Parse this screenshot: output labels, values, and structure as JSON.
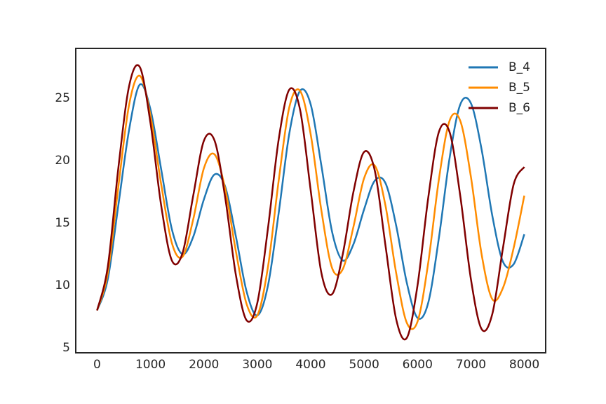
{
  "chart_data": {
    "type": "line",
    "x": [
      0,
      200,
      400,
      600,
      800,
      1000,
      1200,
      1400,
      1600,
      1800,
      2000,
      2200,
      2400,
      2600,
      2800,
      3000,
      3200,
      3400,
      3600,
      3800,
      4000,
      4200,
      4400,
      4600,
      4800,
      5000,
      5200,
      5400,
      5600,
      5800,
      6000,
      6200,
      6400,
      6600,
      6800,
      7000,
      7200,
      7400,
      7600,
      7800,
      8000
    ],
    "series": [
      {
        "name": "B_4",
        "color": "#1f77b4",
        "values": [
          8,
          10.5,
          16.5,
          22.5,
          26.1,
          24.1,
          19.3,
          14.5,
          12.5,
          13.9,
          16.9,
          18.9,
          17.9,
          13.9,
          9.5,
          7.6,
          10.0,
          15.8,
          22.2,
          25.6,
          24.5,
          19.6,
          14.3,
          12.0,
          13.3,
          16.1,
          18.4,
          18.2,
          14.8,
          10.2,
          7.4,
          8.6,
          13.8,
          20.2,
          24.5,
          24.6,
          20.9,
          15.6,
          11.9,
          11.7,
          14.1
        ]
      },
      {
        "name": "B_5",
        "color": "#ff8c00",
        "values": [
          8,
          11,
          18,
          24.5,
          26.8,
          23.6,
          18.1,
          13.4,
          12.3,
          15.3,
          19.4,
          20.5,
          17.7,
          12.7,
          8.5,
          7.6,
          11.5,
          18.4,
          24.3,
          25.6,
          22.1,
          16.0,
          11.4,
          11.3,
          14.7,
          18.6,
          19.6,
          16.4,
          11.0,
          7.0,
          7.1,
          11.8,
          18.5,
          23.2,
          23.2,
          18.7,
          12.5,
          8.9,
          9.8,
          13.0,
          17.2
        ]
      },
      {
        "name": "B_6",
        "color": "#800000",
        "values": [
          8,
          11.5,
          19.5,
          26,
          27.5,
          23.0,
          16.4,
          12.0,
          12.6,
          17.2,
          21.6,
          21.6,
          17.0,
          10.8,
          7.2,
          8.6,
          14.6,
          21.7,
          25.7,
          24.1,
          17.6,
          11.0,
          9.3,
          12.5,
          17.5,
          20.7,
          19.2,
          13.2,
          7.3,
          5.8,
          10.0,
          17.0,
          22.3,
          22.3,
          17.2,
          10.5,
          6.5,
          7.7,
          13.0,
          18.1,
          19.5
        ]
      }
    ],
    "xlim": [
      -400,
      8400
    ],
    "ylim": [
      4.6,
      29.0
    ],
    "xticks": [
      0,
      1000,
      2000,
      3000,
      4000,
      5000,
      6000,
      7000,
      8000
    ],
    "yticks": [
      5,
      10,
      15,
      20,
      25
    ],
    "grid": false,
    "legend": "upper right"
  }
}
